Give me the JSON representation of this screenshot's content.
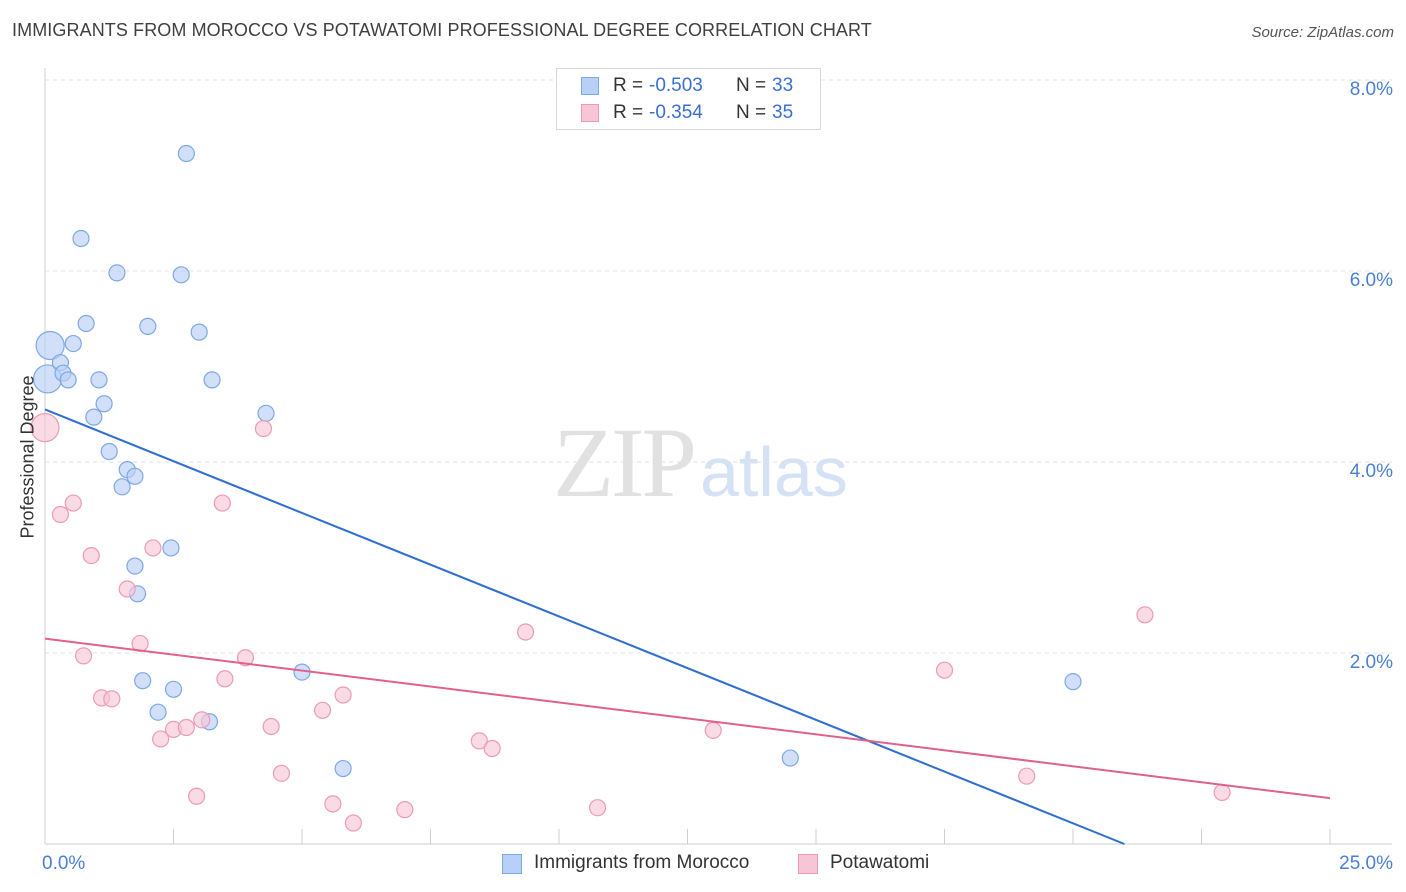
{
  "header": {
    "title": "IMMIGRANTS FROM MOROCCO VS POTAWATOMI PROFESSIONAL DEGREE CORRELATION CHART",
    "source": "Source: ZipAtlas.com"
  },
  "watermark": {
    "zip": "ZIP",
    "atlas": "atlas"
  },
  "legend": {
    "rows": [
      {
        "r_label": "R =",
        "r_value": "-0.503",
        "n_label": "N =",
        "n_value": "33"
      },
      {
        "r_label": "R =",
        "r_value": "-0.354",
        "n_label": "N =",
        "n_value": "35"
      }
    ]
  },
  "bottom_legend": [
    "Immigrants from Morocco",
    "Potawatomi"
  ],
  "colors": {
    "morocco_fill": "#b8d0f5",
    "morocco_stroke": "#7ea8e6",
    "morocco_line": "#2f6fd0",
    "potawatomi_fill": "#f7c6d6",
    "potawatomi_stroke": "#ec9bb5",
    "potawatomi_line": "#e0608e",
    "tick_label": "#4a7fd4",
    "grid": "#e2e2e2"
  },
  "chart_data": {
    "type": "scatter",
    "title": "IMMIGRANTS FROM MOROCCO VS POTAWATOMI PROFESSIONAL DEGREE CORRELATION CHART",
    "xlabel": "",
    "ylabel": "Professional Degree",
    "xlim": [
      0,
      25
    ],
    "ylim": [
      0,
      8
    ],
    "x_tick_labels": [
      "0.0%",
      "25.0%"
    ],
    "y_ticks": [
      2,
      4,
      6,
      8
    ],
    "y_tick_labels": [
      "2.0%",
      "4.0%",
      "6.0%",
      "8.0%"
    ],
    "grid": true,
    "legend_position": "top-center",
    "series": [
      {
        "name": "Immigrants from Morocco",
        "r": -0.503,
        "n": 33,
        "trend": [
          [
            0,
            4.55
          ],
          [
            21,
            0
          ]
        ],
        "points": [
          [
            0.05,
            4.87
          ],
          [
            0.1,
            5.22
          ],
          [
            0.3,
            5.04
          ],
          [
            0.35,
            4.93
          ],
          [
            0.45,
            4.86
          ],
          [
            0.55,
            5.24
          ],
          [
            0.7,
            6.34
          ],
          [
            0.8,
            5.45
          ],
          [
            0.95,
            4.47
          ],
          [
            1.05,
            4.86
          ],
          [
            1.15,
            4.61
          ],
          [
            1.25,
            4.11
          ],
          [
            1.4,
            5.98
          ],
          [
            1.5,
            3.74
          ],
          [
            1.6,
            3.92
          ],
          [
            1.75,
            3.85
          ],
          [
            1.8,
            2.62
          ],
          [
            1.9,
            1.71
          ],
          [
            2.0,
            5.42
          ],
          [
            1.75,
            2.91
          ],
          [
            2.2,
            1.38
          ],
          [
            2.5,
            1.62
          ],
          [
            2.45,
            3.1
          ],
          [
            2.65,
            5.96
          ],
          [
            2.75,
            7.23
          ],
          [
            3.0,
            5.36
          ],
          [
            3.25,
            4.86
          ],
          [
            3.2,
            1.28
          ],
          [
            4.3,
            4.51
          ],
          [
            5.0,
            1.8
          ],
          [
            5.8,
            0.79
          ],
          [
            14.5,
            0.9
          ],
          [
            20.0,
            1.7
          ]
        ]
      },
      {
        "name": "Potawatomi",
        "r": -0.354,
        "n": 35,
        "trend": [
          [
            0,
            2.15
          ],
          [
            25,
            0.48
          ]
        ],
        "points": [
          [
            0.0,
            4.36
          ],
          [
            0.3,
            3.45
          ],
          [
            0.55,
            3.57
          ],
          [
            0.75,
            1.97
          ],
          [
            0.9,
            3.02
          ],
          [
            1.1,
            1.53
          ],
          [
            1.3,
            1.52
          ],
          [
            1.6,
            2.67
          ],
          [
            1.85,
            2.1
          ],
          [
            2.1,
            3.1
          ],
          [
            2.25,
            1.1
          ],
          [
            2.5,
            1.2
          ],
          [
            2.75,
            1.22
          ],
          [
            2.95,
            0.5
          ],
          [
            3.05,
            1.3
          ],
          [
            3.45,
            3.57
          ],
          [
            3.5,
            1.73
          ],
          [
            3.9,
            1.95
          ],
          [
            4.25,
            4.35
          ],
          [
            4.4,
            1.23
          ],
          [
            4.6,
            0.74
          ],
          [
            5.4,
            1.4
          ],
          [
            5.6,
            0.42
          ],
          [
            5.8,
            1.56
          ],
          [
            6.0,
            0.22
          ],
          [
            7.0,
            0.36
          ],
          [
            8.45,
            1.08
          ],
          [
            8.7,
            1.0
          ],
          [
            9.35,
            2.22
          ],
          [
            10.75,
            0.38
          ],
          [
            13.0,
            1.19
          ],
          [
            17.5,
            1.82
          ],
          [
            19.1,
            0.71
          ],
          [
            21.4,
            2.4
          ],
          [
            22.9,
            0.54
          ]
        ]
      }
    ]
  }
}
